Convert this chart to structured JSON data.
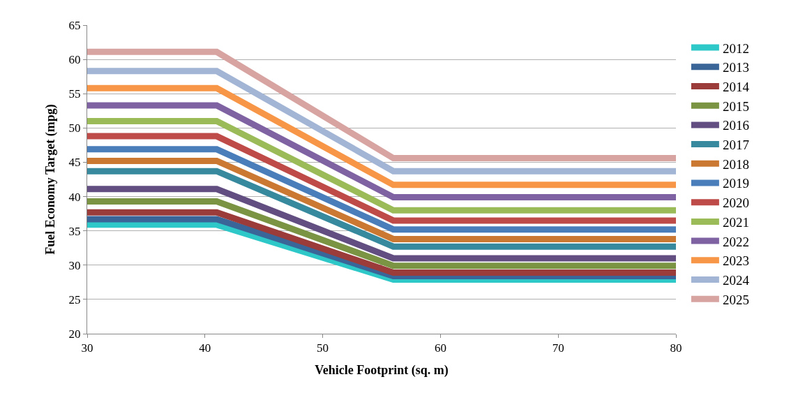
{
  "chart_data": {
    "type": "line",
    "xlabel": "Vehicle Footprint (sq. m)",
    "ylabel": "Fuel Economy Target (mpg)",
    "x": [
      30,
      41,
      56,
      80
    ],
    "xlim": [
      30,
      80
    ],
    "xticks": [
      30,
      40,
      50,
      60,
      70,
      80
    ],
    "ylim": [
      20,
      65
    ],
    "yticks": [
      20,
      25,
      30,
      35,
      40,
      45,
      50,
      55,
      60,
      65
    ],
    "grid": "y",
    "legend": "right",
    "line_style": "solid",
    "series": [
      {
        "name": "2012",
        "color": "#2ec8c8",
        "values": [
          35.9,
          35.9,
          27.9,
          27.9
        ]
      },
      {
        "name": "2013",
        "color": "#3a6598",
        "values": [
          36.7,
          36.7,
          28.4,
          28.4
        ]
      },
      {
        "name": "2014",
        "color": "#9b3c3a",
        "values": [
          37.7,
          37.7,
          28.9,
          28.9
        ]
      },
      {
        "name": "2015",
        "color": "#7a9444",
        "values": [
          39.3,
          39.3,
          29.9,
          29.9
        ]
      },
      {
        "name": "2016",
        "color": "#624e80",
        "values": [
          41.1,
          41.1,
          31.0,
          31.0
        ]
      },
      {
        "name": "2017",
        "color": "#378a9e",
        "values": [
          43.7,
          43.7,
          32.7,
          32.7
        ]
      },
      {
        "name": "2018",
        "color": "#cb7832",
        "values": [
          45.2,
          45.2,
          33.8,
          33.8
        ]
      },
      {
        "name": "2019",
        "color": "#4a7ebb",
        "values": [
          46.9,
          46.9,
          35.2,
          35.2
        ]
      },
      {
        "name": "2020",
        "color": "#be4b48",
        "values": [
          48.8,
          48.8,
          36.5,
          36.5
        ]
      },
      {
        "name": "2021",
        "color": "#9bbb59",
        "values": [
          51.0,
          51.0,
          38.0,
          38.0
        ]
      },
      {
        "name": "2022",
        "color": "#7f62a1",
        "values": [
          53.3,
          53.3,
          39.9,
          39.9
        ]
      },
      {
        "name": "2023",
        "color": "#f79646",
        "values": [
          55.8,
          55.8,
          41.7,
          41.7
        ]
      },
      {
        "name": "2024",
        "color": "#a3b5d4",
        "values": [
          58.3,
          58.3,
          43.7,
          43.7
        ]
      },
      {
        "name": "2025",
        "color": "#d7a4a2",
        "values": [
          61.1,
          61.1,
          45.6,
          45.6
        ]
      }
    ]
  }
}
